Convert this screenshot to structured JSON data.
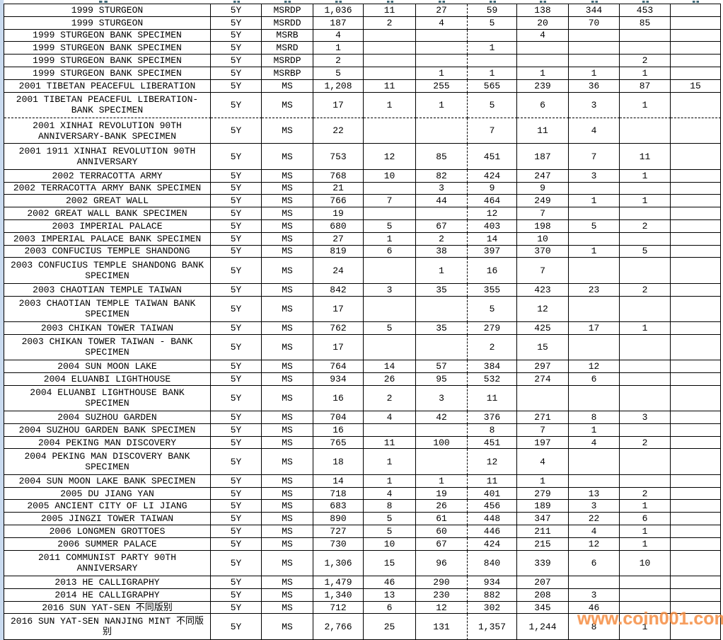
{
  "watermark": {
    "text": "www.coin001.com",
    "color": "#f5883b"
  },
  "page_breaks": {
    "note_vertical_after_column": 6,
    "note_horizontal_after_row": 8
  },
  "table": {
    "rows": [
      {
        "description": "1999 STURGEON",
        "type": "5Y",
        "grade": "MSRDP",
        "lines": 1,
        "values": [
          "1,036",
          "11",
          "27",
          "59",
          "138",
          "344",
          "453",
          ""
        ]
      },
      {
        "description": "1999 STURGEON",
        "type": "5Y",
        "grade": "MSRDD",
        "lines": 1,
        "values": [
          "187",
          "2",
          "4",
          "5",
          "20",
          "70",
          "85",
          ""
        ]
      },
      {
        "description": "1999 STURGEON BANK SPECIMEN",
        "type": "5Y",
        "grade": "MSRB",
        "lines": 1,
        "values": [
          "4",
          "",
          "",
          "",
          "4",
          "",
          "",
          ""
        ]
      },
      {
        "description": "1999 STURGEON BANK SPECIMEN",
        "type": "5Y",
        "grade": "MSRD",
        "lines": 1,
        "values": [
          "1",
          "",
          "",
          "1",
          "",
          "",
          "",
          ""
        ]
      },
      {
        "description": "1999 STURGEON BANK SPECIMEN",
        "type": "5Y",
        "grade": "MSRDP",
        "lines": 1,
        "values": [
          "2",
          "",
          "",
          "",
          "",
          "",
          "2",
          ""
        ]
      },
      {
        "description": "1999 STURGEON BANK SPECIMEN",
        "type": "5Y",
        "grade": "MSRBP",
        "lines": 1,
        "values": [
          "5",
          "",
          "1",
          "1",
          "1",
          "1",
          "1",
          ""
        ]
      },
      {
        "description": "2001 TIBETAN PEACEFUL LIBERATION",
        "type": "5Y",
        "grade": "MS",
        "lines": 1,
        "values": [
          "1,208",
          "11",
          "255",
          "565",
          "239",
          "36",
          "87",
          "15"
        ]
      },
      {
        "description": "2001 TIBETAN PEACEFUL LIBERATION-\nBANK SPECIMEN",
        "type": "5Y",
        "grade": "MS",
        "lines": 2,
        "values": [
          "17",
          "1",
          "1",
          "5",
          "6",
          "3",
          "1",
          ""
        ]
      },
      {
        "description": "2001 XINHAI REVOLUTION 90TH\nANNIVERSARY-BANK SPECIMEN",
        "type": "5Y",
        "grade": "MS",
        "lines": 2,
        "values": [
          "22",
          "",
          "",
          "7",
          "11",
          "4",
          "",
          ""
        ]
      },
      {
        "description": "2001 1911 XINHAI REVOLUTION 90TH\nANNIVERSARY",
        "type": "5Y",
        "grade": "MS",
        "lines": 2,
        "values": [
          "753",
          "12",
          "85",
          "451",
          "187",
          "7",
          "11",
          ""
        ]
      },
      {
        "description": "2002 TERRACOTTA ARMY",
        "type": "5Y",
        "grade": "MS",
        "lines": 1,
        "values": [
          "768",
          "10",
          "82",
          "424",
          "247",
          "3",
          "1",
          ""
        ]
      },
      {
        "description": "2002 TERRACOTTA ARMY BANK SPECIMEN",
        "type": "5Y",
        "grade": "MS",
        "lines": 1,
        "values": [
          "21",
          "",
          "3",
          "9",
          "9",
          "",
          "",
          ""
        ]
      },
      {
        "description": "2002 GREAT WALL",
        "type": "5Y",
        "grade": "MS",
        "lines": 1,
        "values": [
          "766",
          "7",
          "44",
          "464",
          "249",
          "1",
          "1",
          ""
        ]
      },
      {
        "description": "2002 GREAT WALL BANK SPECIMEN",
        "type": "5Y",
        "grade": "MS",
        "lines": 1,
        "values": [
          "19",
          "",
          "",
          "12",
          "7",
          "",
          "",
          ""
        ]
      },
      {
        "description": "2003 IMPERIAL PALACE",
        "type": "5Y",
        "grade": "MS",
        "lines": 1,
        "values": [
          "680",
          "5",
          "67",
          "403",
          "198",
          "5",
          "2",
          ""
        ]
      },
      {
        "description": "2003 IMPERIAL PALACE BANK SPECIMEN",
        "type": "5Y",
        "grade": "MS",
        "lines": 1,
        "values": [
          "27",
          "1",
          "2",
          "14",
          "10",
          "",
          "",
          ""
        ]
      },
      {
        "description": "2003 CONFUCIUS TEMPLE SHANDONG",
        "type": "5Y",
        "grade": "MS",
        "lines": 1,
        "values": [
          "819",
          "6",
          "38",
          "397",
          "370",
          "1",
          "5",
          ""
        ]
      },
      {
        "description": "2003 CONFUCIUS TEMPLE SHANDONG BANK\nSPECIMEN",
        "type": "5Y",
        "grade": "MS",
        "lines": 2,
        "values": [
          "24",
          "",
          "1",
          "16",
          "7",
          "",
          "",
          ""
        ]
      },
      {
        "description": "2003 CHAOTIAN TEMPLE TAIWAN",
        "type": "5Y",
        "grade": "MS",
        "lines": 1,
        "values": [
          "842",
          "3",
          "35",
          "355",
          "423",
          "23",
          "2",
          ""
        ]
      },
      {
        "description": "2003 CHAOTIAN TEMPLE TAIWAN BANK\nSPECIMEN",
        "type": "5Y",
        "grade": "MS",
        "lines": 2,
        "values": [
          "17",
          "",
          "",
          "5",
          "12",
          "",
          "",
          ""
        ]
      },
      {
        "description": "2003 CHIKAN TOWER TAIWAN",
        "type": "5Y",
        "grade": "MS",
        "lines": 1,
        "values": [
          "762",
          "5",
          "35",
          "279",
          "425",
          "17",
          "1",
          ""
        ]
      },
      {
        "description": "2003 CHIKAN TOWER TAIWAN - BANK\nSPECIMEN",
        "type": "5Y",
        "grade": "MS",
        "lines": 2,
        "values": [
          "17",
          "",
          "",
          "2",
          "15",
          "",
          "",
          ""
        ]
      },
      {
        "description": "2004 SUN MOON LAKE",
        "type": "5Y",
        "grade": "MS",
        "lines": 1,
        "values": [
          "764",
          "14",
          "57",
          "384",
          "297",
          "12",
          "",
          ""
        ]
      },
      {
        "description": "2004 ELUANBI LIGHTHOUSE",
        "type": "5Y",
        "grade": "MS",
        "lines": 1,
        "values": [
          "934",
          "26",
          "95",
          "532",
          "274",
          "6",
          "",
          ""
        ]
      },
      {
        "description": "2004 ELUANBI LIGHTHOUSE BANK\nSPECIMEN",
        "type": "5Y",
        "grade": "MS",
        "lines": 2,
        "values": [
          "16",
          "2",
          "3",
          "11",
          "",
          "",
          "",
          ""
        ]
      },
      {
        "description": "2004 SUZHOU GARDEN",
        "type": "5Y",
        "grade": "MS",
        "lines": 1,
        "values": [
          "704",
          "4",
          "42",
          "376",
          "271",
          "8",
          "3",
          ""
        ]
      },
      {
        "description": "2004 SUZHOU GARDEN BANK SPECIMEN",
        "type": "5Y",
        "grade": "MS",
        "lines": 1,
        "values": [
          "16",
          "",
          "",
          "8",
          "7",
          "1",
          "",
          ""
        ]
      },
      {
        "description": "2004 PEKING MAN DISCOVERY",
        "type": "5Y",
        "grade": "MS",
        "lines": 1,
        "values": [
          "765",
          "11",
          "100",
          "451",
          "197",
          "4",
          "2",
          ""
        ]
      },
      {
        "description": "2004 PEKING MAN DISCOVERY BANK\nSPECIMEN",
        "type": "5Y",
        "grade": "MS",
        "lines": 2,
        "values": [
          "18",
          "1",
          "",
          "12",
          "4",
          "",
          "",
          ""
        ]
      },
      {
        "description": "2004 SUN MOON LAKE BANK SPECIMEN",
        "type": "5Y",
        "grade": "MS",
        "lines": 1,
        "values": [
          "14",
          "1",
          "1",
          "11",
          "1",
          "",
          "",
          ""
        ]
      },
      {
        "description": "2005 DU JIANG YAN",
        "type": "5Y",
        "grade": "MS",
        "lines": 1,
        "values": [
          "718",
          "4",
          "19",
          "401",
          "279",
          "13",
          "2",
          ""
        ]
      },
      {
        "description": "2005 ANCIENT CITY OF LI JIANG",
        "type": "5Y",
        "grade": "MS",
        "lines": 1,
        "values": [
          "683",
          "8",
          "26",
          "456",
          "189",
          "3",
          "1",
          ""
        ]
      },
      {
        "description": "2005 JINGZI TOWER TAIWAN",
        "type": "5Y",
        "grade": "MS",
        "lines": 1,
        "values": [
          "890",
          "5",
          "61",
          "448",
          "347",
          "22",
          "6",
          ""
        ]
      },
      {
        "description": "2006 LONGMEN GROTTOES",
        "type": "5Y",
        "grade": "MS",
        "lines": 1,
        "values": [
          "727",
          "5",
          "60",
          "446",
          "211",
          "4",
          "1",
          ""
        ]
      },
      {
        "description": "2006 SUMMER PALACE",
        "type": "5Y",
        "grade": "MS",
        "lines": 1,
        "values": [
          "730",
          "10",
          "67",
          "424",
          "215",
          "12",
          "1",
          ""
        ]
      },
      {
        "description": "2011 COMMUNIST PARTY 90TH\nANNIVERSARY",
        "type": "5Y",
        "grade": "MS",
        "lines": 2,
        "values": [
          "1,306",
          "15",
          "96",
          "840",
          "339",
          "6",
          "10",
          ""
        ]
      },
      {
        "description": "2013 HE CALLIGRAPHY",
        "type": "5Y",
        "grade": "MS",
        "lines": 1,
        "values": [
          "1,479",
          "46",
          "290",
          "934",
          "207",
          "",
          "",
          ""
        ]
      },
      {
        "description": "2014 HE CALLIGRAPHY",
        "type": "5Y",
        "grade": "MS",
        "lines": 1,
        "values": [
          "1,340",
          "13",
          "230",
          "882",
          "208",
          "3",
          "",
          ""
        ]
      },
      {
        "description": "2016 SUN YAT-SEN 不同版别",
        "type": "5Y",
        "grade": "MS",
        "lines": 1,
        "values": [
          "712",
          "6",
          "12",
          "302",
          "345",
          "46",
          "",
          ""
        ]
      },
      {
        "description": "2016 SUN YAT-SEN NANJING MINT 不同版\n别",
        "type": "5Y",
        "grade": "MS",
        "lines": 2,
        "values": [
          "2,766",
          "25",
          "131",
          "1,357",
          "1,244",
          "8",
          "1",
          ""
        ]
      }
    ]
  }
}
